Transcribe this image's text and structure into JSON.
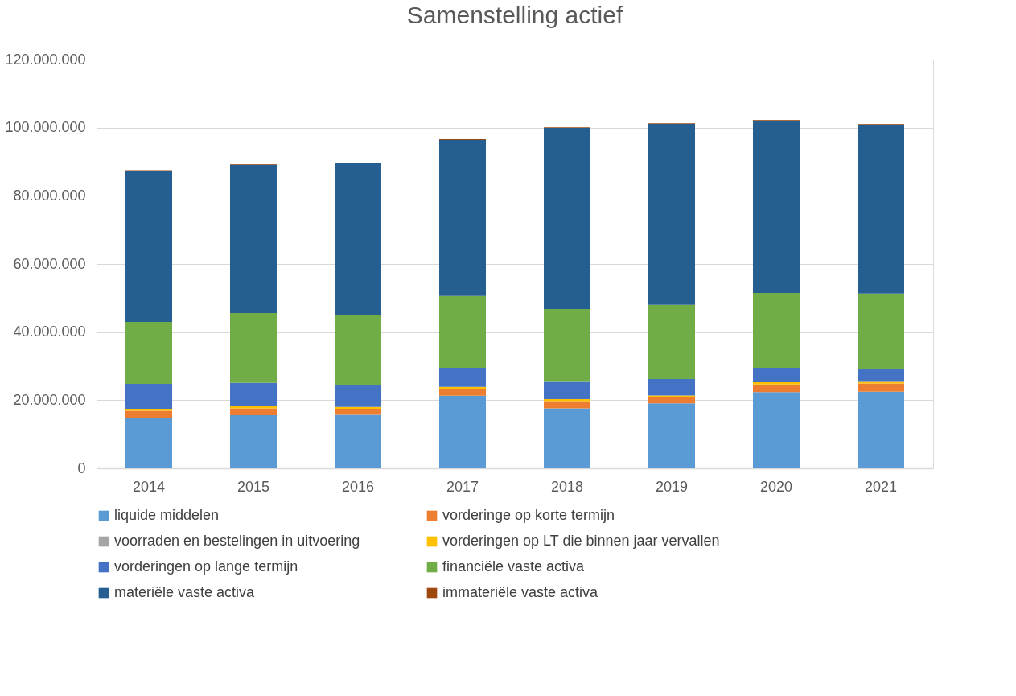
{
  "chart_data": {
    "type": "bar",
    "title": "Samenstelling actief",
    "stacked": true,
    "categories": [
      "2014",
      "2015",
      "2016",
      "2017",
      "2018",
      "2019",
      "2020",
      "2021"
    ],
    "series": [
      {
        "name": "liquide middelen",
        "color": "#5b9bd5",
        "values": [
          14900000,
          15600000,
          15700000,
          21300000,
          17600000,
          19100000,
          22400000,
          22500000
        ]
      },
      {
        "name": "vorderinge op korte termijn",
        "color": "#ed7d31",
        "values": [
          2000000,
          2000000,
          1800000,
          1900000,
          2100000,
          1800000,
          2200000,
          2400000
        ]
      },
      {
        "name": "voorraden en bestelingen in uitvoering",
        "color": "#a5a5a5",
        "values": [
          null,
          null,
          null,
          null,
          null,
          null,
          null,
          null
        ]
      },
      {
        "name": "vorderingen op LT die binnen jaar vervallen",
        "color": "#ffc000",
        "values": [
          600000,
          600000,
          500000,
          700000,
          600000,
          500000,
          700000,
          500000
        ]
      },
      {
        "name": "vorderingen op lange termijn",
        "color": "#4472c4",
        "values": [
          7300000,
          6900000,
          6400000,
          5600000,
          5100000,
          4800000,
          4200000,
          3700000
        ]
      },
      {
        "name": "financiële vaste activa",
        "color": "#70ad47",
        "values": [
          18200000,
          20500000,
          20700000,
          21100000,
          21400000,
          21800000,
          22000000,
          22200000
        ]
      },
      {
        "name": "materiële vaste activa",
        "color": "#255e91",
        "values": [
          44200000,
          43500000,
          44400000,
          45800000,
          53100000,
          53100000,
          50600000,
          49600000
        ]
      },
      {
        "name": "immateriële vaste activa",
        "color": "#9e480e",
        "values": [
          300000,
          200000,
          200000,
          200000,
          200000,
          200000,
          200000,
          200000
        ]
      }
    ],
    "ylim": [
      0,
      120000000
    ],
    "yticks": [
      {
        "value": 0,
        "label": "0"
      },
      {
        "value": 20000000,
        "label": "20.000.000"
      },
      {
        "value": 40000000,
        "label": "40.000.000"
      },
      {
        "value": 60000000,
        "label": "60.000.000"
      },
      {
        "value": 80000000,
        "label": "80.000.000"
      },
      {
        "value": 100000000,
        "label": "100.000.000"
      },
      {
        "value": 120000000,
        "label": "120.000.000"
      }
    ],
    "grid": "y",
    "legend": "bottom"
  }
}
